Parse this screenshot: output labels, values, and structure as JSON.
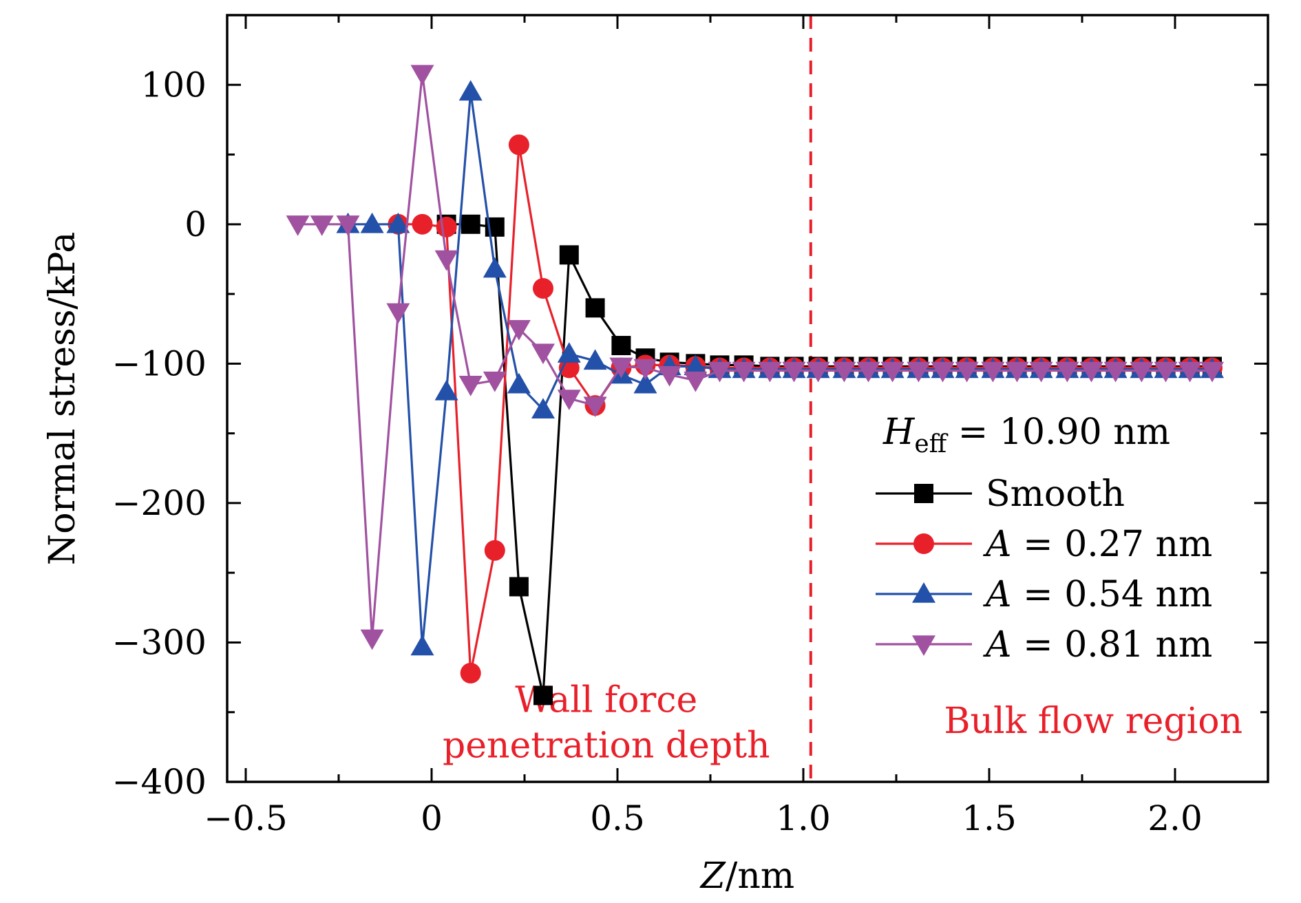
{
  "chart_data": {
    "type": "line",
    "xlabel": "Z/nm",
    "xlabel_var": "Z",
    "xlabel_unit": "/nm",
    "ylabel": "Normal stress/kPa",
    "xlim": [
      -0.55,
      2.25
    ],
    "ylim": [
      -400,
      150
    ],
    "x_ticks": [
      -0.5,
      0,
      0.5,
      1.0,
      1.5,
      2.0
    ],
    "x_tick_labels": [
      "−0.5",
      "0",
      "0.5",
      "1.0",
      "1.5",
      "2.0"
    ],
    "y_ticks": [
      -400,
      -300,
      -200,
      -100,
      0,
      100
    ],
    "y_tick_labels": [
      "−400",
      "−300",
      "−200",
      "−100",
      "0",
      "100"
    ],
    "grid": false,
    "legend_title": {
      "var": "H",
      "sub": "eff",
      "rest": " = 10.90 nm"
    },
    "legend_position": "right-middle",
    "vline": {
      "x": 1.02,
      "color": "#e8202a",
      "style": "dashed"
    },
    "annotations": [
      {
        "lines": [
          "Wall force",
          "penetration depth"
        ],
        "x": 0.47,
        "y": -350,
        "color": "#e8202a"
      },
      {
        "lines": [
          "Bulk flow region"
        ],
        "x": 1.78,
        "y": -365,
        "color": "#e8202a"
      }
    ],
    "series": [
      {
        "name": "Smooth",
        "label_var": "",
        "label_rest": "Smooth",
        "color": "#000000",
        "marker": "square",
        "x": [
          0.04,
          0.105,
          0.17,
          0.235,
          0.3,
          0.37,
          0.44,
          0.51,
          0.575,
          0.64,
          0.71,
          0.775,
          0.84,
          0.91,
          0.975,
          1.04,
          1.11,
          1.175,
          1.24,
          1.31,
          1.375,
          1.44,
          1.51,
          1.575,
          1.64,
          1.71,
          1.775,
          1.84,
          1.91,
          1.975,
          2.04,
          2.1
        ],
        "y": [
          0,
          0,
          -2,
          -260,
          -338,
          -22,
          -60,
          -87,
          -96,
          -99,
          -100,
          -101,
          -101,
          -102,
          -102,
          -102,
          -102,
          -102,
          -102,
          -102,
          -102,
          -102,
          -102,
          -102,
          -102,
          -102,
          -102,
          -102,
          -102,
          -102,
          -102,
          -102
        ]
      },
      {
        "name": "A = 0.27 nm",
        "label_var": "A",
        "label_rest": " = 0.27 nm",
        "color": "#e8202a",
        "marker": "circle",
        "x": [
          -0.09,
          -0.025,
          0.04,
          0.105,
          0.17,
          0.235,
          0.3,
          0.37,
          0.44,
          0.51,
          0.575,
          0.64,
          0.71,
          0.775,
          0.84,
          0.91,
          0.975,
          1.04,
          1.11,
          1.175,
          1.24,
          1.31,
          1.375,
          1.44,
          1.51,
          1.575,
          1.64,
          1.71,
          1.775,
          1.84,
          1.91,
          1.975,
          2.04,
          2.1
        ],
        "y": [
          0,
          0,
          -2,
          -322,
          -234,
          57,
          -46,
          -103,
          -130,
          -103,
          -101,
          -101,
          -102,
          -103,
          -103,
          -103,
          -103,
          -103,
          -103,
          -103,
          -103,
          -103,
          -103,
          -103,
          -103,
          -103,
          -103,
          -103,
          -103,
          -103,
          -103,
          -103,
          -103,
          -103
        ]
      },
      {
        "name": "A = 0.54 nm",
        "label_var": "A",
        "label_rest": " = 0.54 nm",
        "color": "#2350a8",
        "marker": "triangle-up",
        "x": [
          -0.225,
          -0.16,
          -0.09,
          -0.025,
          0.04,
          0.105,
          0.17,
          0.235,
          0.3,
          0.37,
          0.44,
          0.51,
          0.575,
          0.64,
          0.71,
          0.775,
          0.84,
          0.91,
          0.975,
          1.04,
          1.11,
          1.175,
          1.24,
          1.31,
          1.375,
          1.44,
          1.51,
          1.575,
          1.64,
          1.71,
          1.775,
          1.84,
          1.91,
          1.975,
          2.04,
          2.1
        ],
        "y": [
          0,
          0,
          0,
          -303,
          -120,
          95,
          -32,
          -115,
          -133,
          -93,
          -98,
          -108,
          -115,
          -102,
          -102,
          -104,
          -104,
          -104,
          -104,
          -104,
          -104,
          -104,
          -104,
          -104,
          -104,
          -104,
          -104,
          -104,
          -104,
          -104,
          -104,
          -104,
          -104,
          -104,
          -104,
          -104
        ]
      },
      {
        "name": "A = 0.81 nm",
        "label_var": "A",
        "label_rest": " = 0.81 nm",
        "color": "#a052a0",
        "marker": "triangle-down",
        "x": [
          -0.36,
          -0.295,
          -0.225,
          -0.16,
          -0.09,
          -0.025,
          0.04,
          0.105,
          0.17,
          0.235,
          0.3,
          0.37,
          0.44,
          0.51,
          0.575,
          0.64,
          0.71,
          0.775,
          0.84,
          0.91,
          0.975,
          1.04,
          1.11,
          1.175,
          1.24,
          1.31,
          1.375,
          1.44,
          1.51,
          1.575,
          1.64,
          1.71,
          1.775,
          1.84,
          1.91,
          1.975,
          2.04,
          2.1
        ],
        "y": [
          0,
          0,
          0,
          -297,
          -63,
          108,
          -25,
          -115,
          -112,
          -75,
          -92,
          -125,
          -130,
          -102,
          -103,
          -108,
          -112,
          -105,
          -105,
          -105,
          -105,
          -105,
          -105,
          -105,
          -105,
          -105,
          -105,
          -105,
          -105,
          -105,
          -105,
          -105,
          -105,
          -105,
          -105,
          -105,
          -105,
          -105
        ]
      }
    ]
  }
}
